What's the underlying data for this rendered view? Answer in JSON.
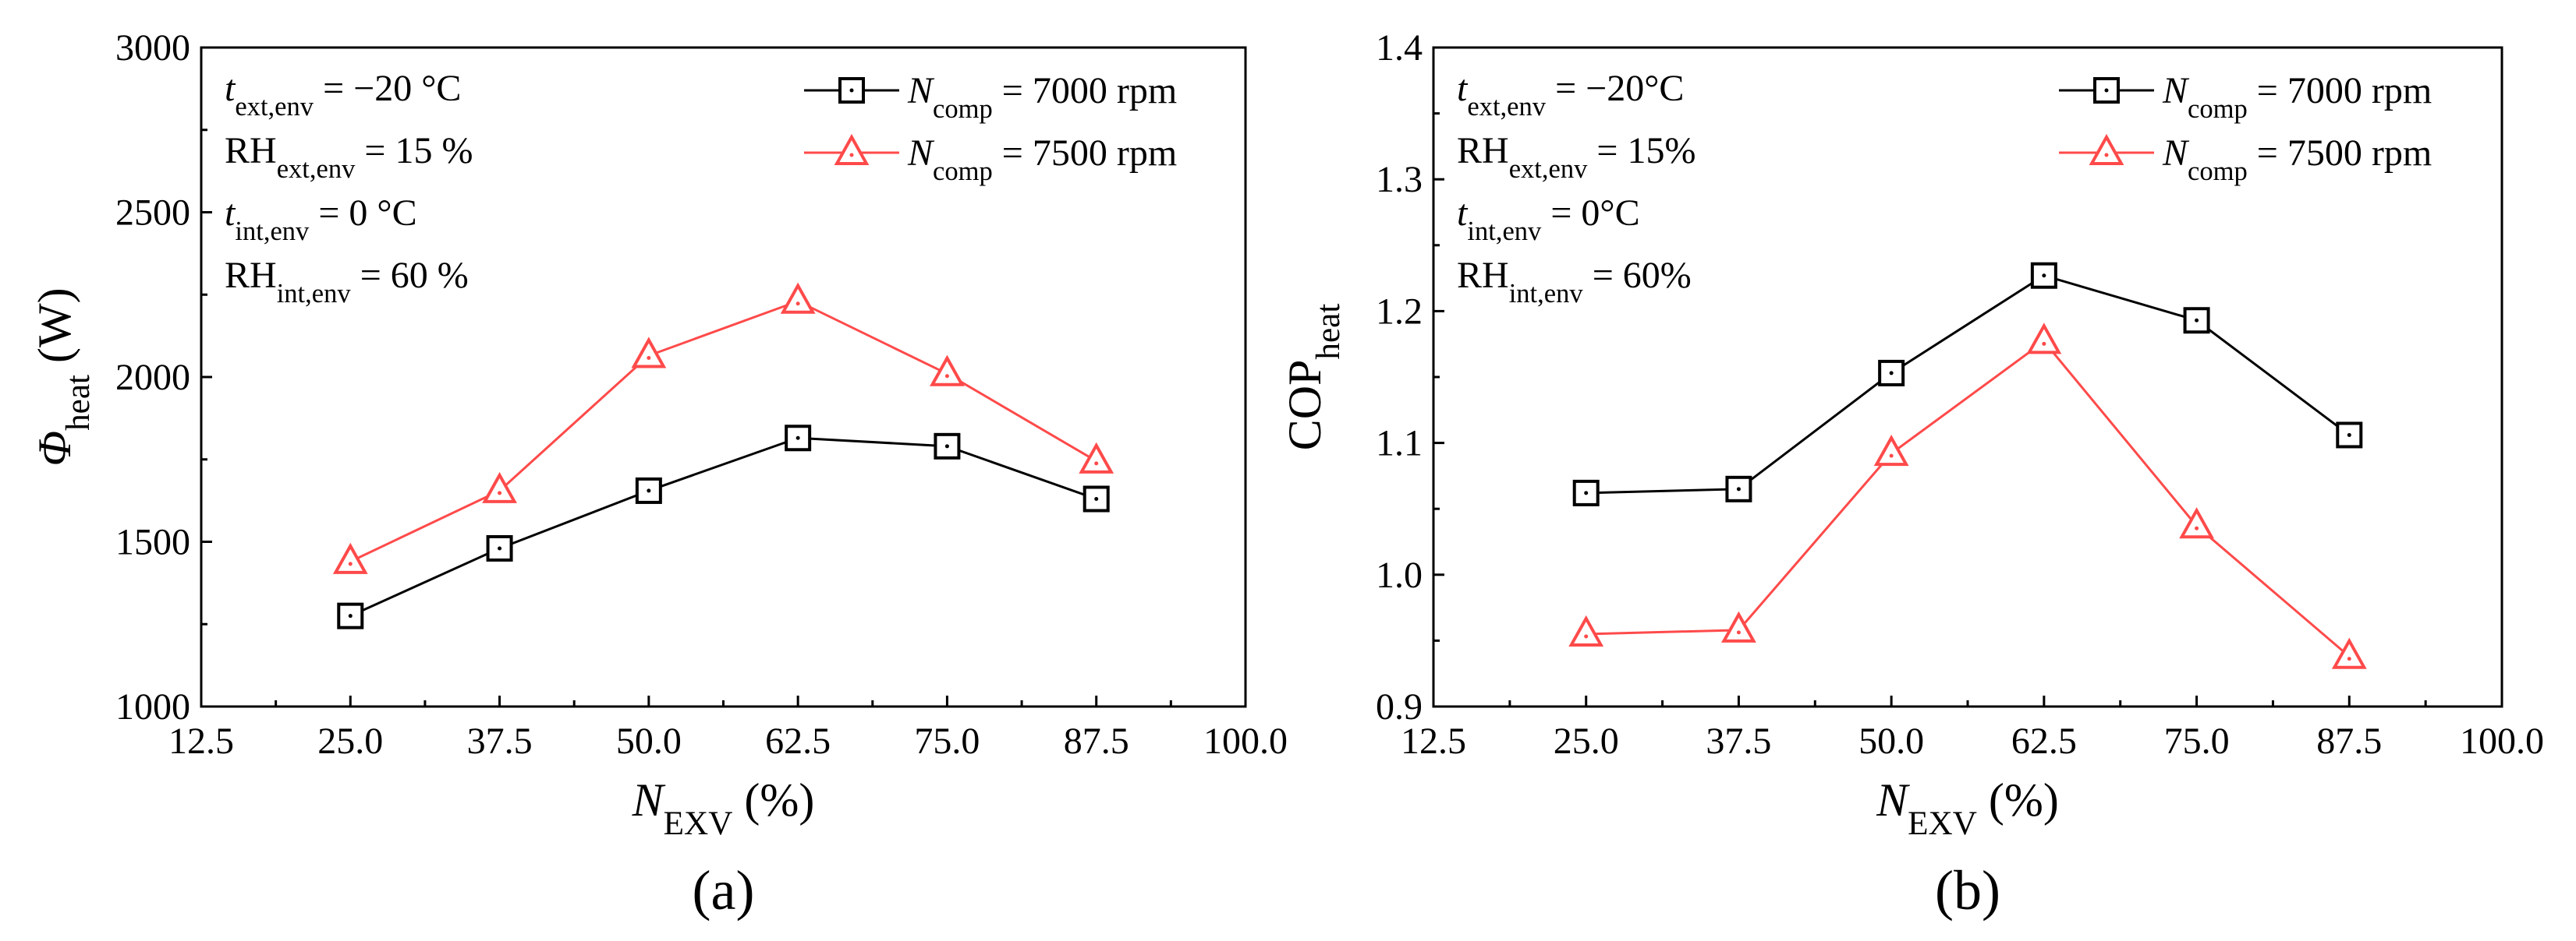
{
  "chart_data": [
    {
      "type": "line",
      "panel_label": "(a)",
      "ylabel": {
        "main": "Φ",
        "sub": "heat",
        "unit": "(W)"
      },
      "xlabel": {
        "main": "N",
        "sub": "EXV",
        "unit": "(%)"
      },
      "xlim": [
        12.5,
        100.0
      ],
      "ylim": [
        1000,
        3000
      ],
      "xticks": [
        12.5,
        25.0,
        37.5,
        50.0,
        62.5,
        75.0,
        87.5,
        100.0
      ],
      "xtick_labels": [
        "12.5",
        "25.0",
        "37.5",
        "50.0",
        "62.5",
        "75.0",
        "87.5",
        "100.0"
      ],
      "yticks": [
        1000,
        1500,
        2000,
        2500,
        3000
      ],
      "ytick_labels": [
        "1000",
        "1500",
        "2000",
        "2500",
        "3000"
      ],
      "x": [
        25.0,
        37.5,
        50.0,
        62.5,
        75.0,
        87.5
      ],
      "series": [
        {
          "name": "N_comp = 7000 rpm",
          "label_main": "N",
          "label_sub": "comp",
          "label_rest": " = 7000 rpm",
          "marker": "square",
          "color": "#000000",
          "values": [
            1275,
            1480,
            1655,
            1815,
            1790,
            1630
          ]
        },
        {
          "name": "N_comp = 7500 rpm",
          "label_main": "N",
          "label_sub": "comp",
          "label_rest": " = 7500 rpm",
          "marker": "triangle",
          "color": "#ff4a4a",
          "values": [
            1440,
            1655,
            2065,
            2230,
            2010,
            1745
          ]
        }
      ],
      "conditions": [
        {
          "main": "t",
          "sub": "ext,env",
          "rest": " = −20 °C"
        },
        {
          "main": "RH",
          "sub": "ext,env",
          "rest": " = 15 %"
        },
        {
          "main": "t",
          "sub": "int,env",
          "rest": " = 0 °C"
        },
        {
          "main": "RH",
          "sub": "int,env",
          "rest": " = 60 %"
        }
      ]
    },
    {
      "type": "line",
      "panel_label": "(b)",
      "ylabel": {
        "main": "COP",
        "sub": "heat",
        "unit": ""
      },
      "xlabel": {
        "main": "N",
        "sub": "EXV",
        "unit": "(%)"
      },
      "xlim": [
        12.5,
        100.0
      ],
      "ylim": [
        0.9,
        1.4
      ],
      "xticks": [
        12.5,
        25.0,
        37.5,
        50.0,
        62.5,
        75.0,
        87.5,
        100.0
      ],
      "xtick_labels": [
        "12.5",
        "25.0",
        "37.5",
        "50.0",
        "62.5",
        "75.0",
        "87.5",
        "100.0"
      ],
      "yticks": [
        0.9,
        1.0,
        1.1,
        1.2,
        1.3,
        1.4
      ],
      "ytick_labels": [
        "0.9",
        "1.0",
        "1.1",
        "1.2",
        "1.3",
        "1.4"
      ],
      "x": [
        25.0,
        37.5,
        50.0,
        62.5,
        75.0,
        87.5
      ],
      "series": [
        {
          "name": "N_comp = 7000 rpm",
          "label_main": "N",
          "label_sub": "comp",
          "label_rest": " = 7000 rpm",
          "marker": "square",
          "color": "#000000",
          "values": [
            1.062,
            1.065,
            1.153,
            1.227,
            1.193,
            1.106
          ]
        },
        {
          "name": "N_comp = 7500 rpm",
          "label_main": "N",
          "label_sub": "comp",
          "label_rest": " = 7500 rpm",
          "marker": "triangle",
          "color": "#ff4a4a",
          "values": [
            0.955,
            0.958,
            1.092,
            1.177,
            1.037,
            0.938
          ]
        }
      ],
      "conditions": [
        {
          "main": "t",
          "sub": "ext,env",
          "rest": " = −20°C"
        },
        {
          "main": "RH",
          "sub": "ext,env",
          "rest": " = 15%"
        },
        {
          "main": "t",
          "sub": "int,env",
          "rest": " = 0°C"
        },
        {
          "main": "RH",
          "sub": "int,env",
          "rest": " = 60%"
        }
      ]
    }
  ]
}
